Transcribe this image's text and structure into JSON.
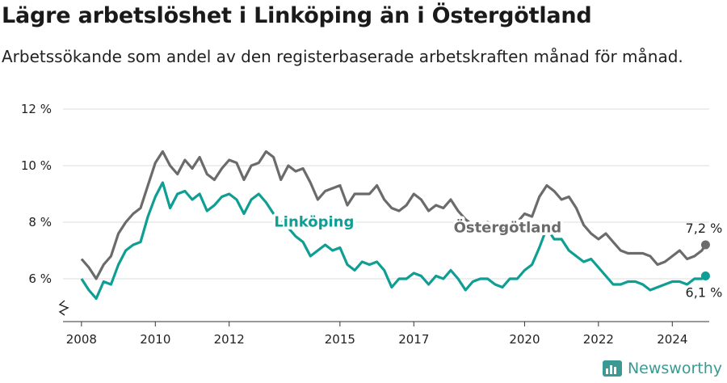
{
  "title": "Lägre arbetslöshet i Linköping än i Östergötland",
  "subtitle": "Arbetssökande som andel av den registerbaserade arbetskraften månad för månad.",
  "brand": "Newsworthy",
  "colors": {
    "linkoping": "#0e9e94",
    "ostergotland": "#6b6b6b",
    "grid": "#dcdcdc"
  },
  "chart_data": {
    "type": "line",
    "title": "Lägre arbetslöshet i Linköping än i Östergötland",
    "ylabel": "",
    "xlabel": "",
    "ylim": [
      5.0,
      12.0
    ],
    "xlim": [
      2007.5,
      2025.0
    ],
    "yticks": [
      6,
      8,
      10,
      12
    ],
    "ytick_labels": [
      "6 %",
      "8 %",
      "10 %",
      "12 %"
    ],
    "xticks": [
      "2008",
      "2010",
      "2012",
      "2015",
      "2017",
      "2020",
      "2022",
      "2024"
    ],
    "series": [
      {
        "name": "Östergötland",
        "end_label": "7,2 %",
        "points": [
          [
            2008.0,
            6.7
          ],
          [
            2008.2,
            6.4
          ],
          [
            2008.4,
            6.0
          ],
          [
            2008.6,
            6.5
          ],
          [
            2008.8,
            6.8
          ],
          [
            2009.0,
            7.6
          ],
          [
            2009.2,
            8.0
          ],
          [
            2009.4,
            8.3
          ],
          [
            2009.6,
            8.5
          ],
          [
            2009.8,
            9.3
          ],
          [
            2010.0,
            10.1
          ],
          [
            2010.2,
            10.5
          ],
          [
            2010.4,
            10.0
          ],
          [
            2010.6,
            9.7
          ],
          [
            2010.8,
            10.2
          ],
          [
            2011.0,
            9.9
          ],
          [
            2011.2,
            10.3
          ],
          [
            2011.4,
            9.7
          ],
          [
            2011.6,
            9.5
          ],
          [
            2011.8,
            9.9
          ],
          [
            2012.0,
            10.2
          ],
          [
            2012.2,
            10.1
          ],
          [
            2012.4,
            9.5
          ],
          [
            2012.6,
            10.0
          ],
          [
            2012.8,
            10.1
          ],
          [
            2013.0,
            10.5
          ],
          [
            2013.2,
            10.3
          ],
          [
            2013.4,
            9.5
          ],
          [
            2013.6,
            10.0
          ],
          [
            2013.8,
            9.8
          ],
          [
            2014.0,
            9.9
          ],
          [
            2014.2,
            9.4
          ],
          [
            2014.4,
            8.8
          ],
          [
            2014.6,
            9.1
          ],
          [
            2014.8,
            9.2
          ],
          [
            2015.0,
            9.3
          ],
          [
            2015.2,
            8.6
          ],
          [
            2015.4,
            9.0
          ],
          [
            2015.6,
            9.0
          ],
          [
            2015.8,
            9.0
          ],
          [
            2016.0,
            9.3
          ],
          [
            2016.2,
            8.8
          ],
          [
            2016.4,
            8.5
          ],
          [
            2016.6,
            8.4
          ],
          [
            2016.8,
            8.6
          ],
          [
            2017.0,
            9.0
          ],
          [
            2017.2,
            8.8
          ],
          [
            2017.4,
            8.4
          ],
          [
            2017.6,
            8.6
          ],
          [
            2017.8,
            8.5
          ],
          [
            2018.0,
            8.8
          ],
          [
            2018.2,
            8.4
          ],
          [
            2018.4,
            8.1
          ],
          [
            2018.6,
            7.9
          ],
          [
            2018.8,
            7.9
          ],
          [
            2019.0,
            8.0
          ],
          [
            2019.2,
            7.8
          ],
          [
            2019.4,
            7.8
          ],
          [
            2019.6,
            7.9
          ],
          [
            2019.8,
            8.0
          ],
          [
            2020.0,
            8.3
          ],
          [
            2020.2,
            8.2
          ],
          [
            2020.4,
            8.9
          ],
          [
            2020.6,
            9.3
          ],
          [
            2020.8,
            9.1
          ],
          [
            2021.0,
            8.8
          ],
          [
            2021.2,
            8.9
          ],
          [
            2021.4,
            8.5
          ],
          [
            2021.6,
            7.9
          ],
          [
            2021.8,
            7.6
          ],
          [
            2022.0,
            7.4
          ],
          [
            2022.2,
            7.6
          ],
          [
            2022.4,
            7.3
          ],
          [
            2022.6,
            7.0
          ],
          [
            2022.8,
            6.9
          ],
          [
            2023.0,
            6.9
          ],
          [
            2023.2,
            6.9
          ],
          [
            2023.4,
            6.8
          ],
          [
            2023.6,
            6.5
          ],
          [
            2023.8,
            6.6
          ],
          [
            2024.0,
            6.8
          ],
          [
            2024.2,
            7.0
          ],
          [
            2024.4,
            6.7
          ],
          [
            2024.6,
            6.8
          ],
          [
            2024.8,
            7.0
          ],
          [
            2024.9,
            7.2
          ]
        ]
      },
      {
        "name": "Linköping",
        "end_label": "6,1 %",
        "points": [
          [
            2008.0,
            6.0
          ],
          [
            2008.2,
            5.6
          ],
          [
            2008.4,
            5.3
          ],
          [
            2008.6,
            5.9
          ],
          [
            2008.8,
            5.8
          ],
          [
            2009.0,
            6.5
          ],
          [
            2009.2,
            7.0
          ],
          [
            2009.4,
            7.2
          ],
          [
            2009.6,
            7.3
          ],
          [
            2009.8,
            8.2
          ],
          [
            2010.0,
            8.9
          ],
          [
            2010.2,
            9.4
          ],
          [
            2010.4,
            8.5
          ],
          [
            2010.6,
            9.0
          ],
          [
            2010.8,
            9.1
          ],
          [
            2011.0,
            8.8
          ],
          [
            2011.2,
            9.0
          ],
          [
            2011.4,
            8.4
          ],
          [
            2011.6,
            8.6
          ],
          [
            2011.8,
            8.9
          ],
          [
            2012.0,
            9.0
          ],
          [
            2012.2,
            8.8
          ],
          [
            2012.4,
            8.3
          ],
          [
            2012.6,
            8.8
          ],
          [
            2012.8,
            9.0
          ],
          [
            2013.0,
            8.7
          ],
          [
            2013.2,
            8.3
          ],
          [
            2013.4,
            8.0
          ],
          [
            2013.6,
            7.8
          ],
          [
            2013.8,
            7.5
          ],
          [
            2014.0,
            7.3
          ],
          [
            2014.2,
            6.8
          ],
          [
            2014.4,
            7.0
          ],
          [
            2014.6,
            7.2
          ],
          [
            2014.8,
            7.0
          ],
          [
            2015.0,
            7.1
          ],
          [
            2015.2,
            6.5
          ],
          [
            2015.4,
            6.3
          ],
          [
            2015.6,
            6.6
          ],
          [
            2015.8,
            6.5
          ],
          [
            2016.0,
            6.6
          ],
          [
            2016.2,
            6.3
          ],
          [
            2016.4,
            5.7
          ],
          [
            2016.6,
            6.0
          ],
          [
            2016.8,
            6.0
          ],
          [
            2017.0,
            6.2
          ],
          [
            2017.2,
            6.1
          ],
          [
            2017.4,
            5.8
          ],
          [
            2017.6,
            6.1
          ],
          [
            2017.8,
            6.0
          ],
          [
            2018.0,
            6.3
          ],
          [
            2018.2,
            6.0
          ],
          [
            2018.4,
            5.6
          ],
          [
            2018.6,
            5.9
          ],
          [
            2018.8,
            6.0
          ],
          [
            2019.0,
            6.0
          ],
          [
            2019.2,
            5.8
          ],
          [
            2019.4,
            5.7
          ],
          [
            2019.6,
            6.0
          ],
          [
            2019.8,
            6.0
          ],
          [
            2020.0,
            6.3
          ],
          [
            2020.2,
            6.5
          ],
          [
            2020.4,
            7.1
          ],
          [
            2020.6,
            7.8
          ],
          [
            2020.8,
            7.4
          ],
          [
            2021.0,
            7.4
          ],
          [
            2021.2,
            7.0
          ],
          [
            2021.4,
            6.8
          ],
          [
            2021.6,
            6.6
          ],
          [
            2021.8,
            6.7
          ],
          [
            2022.0,
            6.4
          ],
          [
            2022.2,
            6.1
          ],
          [
            2022.4,
            5.8
          ],
          [
            2022.6,
            5.8
          ],
          [
            2022.8,
            5.9
          ],
          [
            2023.0,
            5.9
          ],
          [
            2023.2,
            5.8
          ],
          [
            2023.4,
            5.6
          ],
          [
            2023.6,
            5.7
          ],
          [
            2023.8,
            5.8
          ],
          [
            2024.0,
            5.9
          ],
          [
            2024.2,
            5.9
          ],
          [
            2024.4,
            5.8
          ],
          [
            2024.6,
            6.0
          ],
          [
            2024.8,
            6.0
          ],
          [
            2024.9,
            6.1
          ]
        ]
      }
    ]
  }
}
